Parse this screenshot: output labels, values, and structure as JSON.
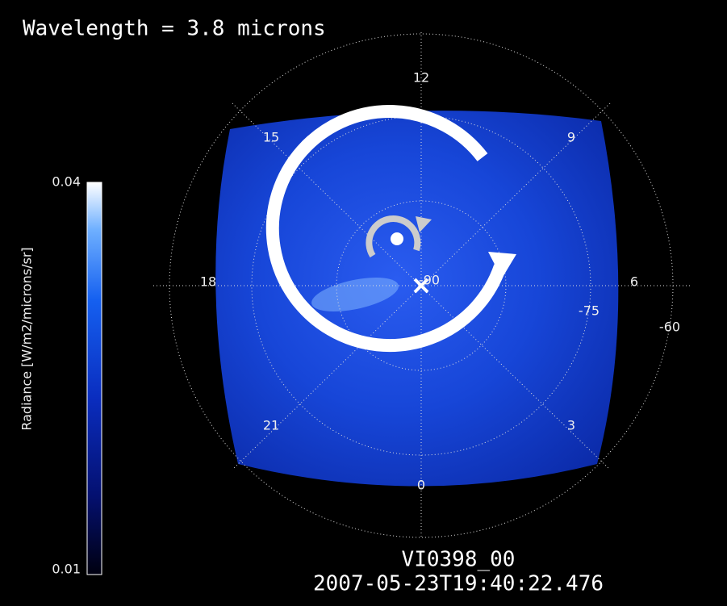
{
  "header": {
    "title": "Wavelength = 3.8 microns"
  },
  "colorbar": {
    "label": "Radiance [W/m2/microns/sr]",
    "max": 0.04,
    "min": 0.01
  },
  "local_time_labels": [
    "12",
    "9",
    "6",
    "3",
    "0",
    "21",
    "18",
    "15"
  ],
  "center_label": "-90",
  "latitude_labels": [
    "-75",
    "-60"
  ],
  "footer": {
    "image_id": "VI0398_00",
    "timestamp": "2007-05-23T19:40:22.476"
  }
}
